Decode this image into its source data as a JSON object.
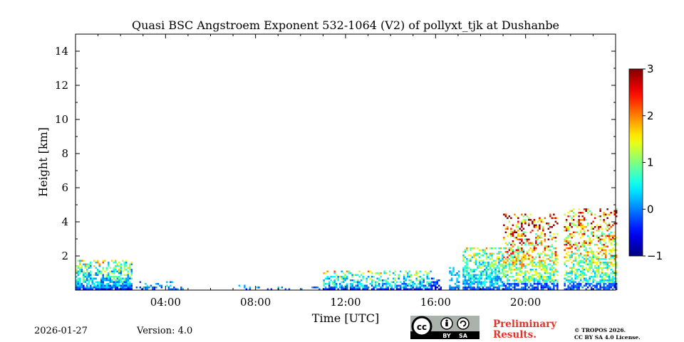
{
  "chart_data": {
    "type": "heatmap",
    "title": "Quasi BSC Angstroem Exponent 532-1064 (V2) of pollyxt_tjk at Dushanbe",
    "xlabel": "Time [UTC]",
    "ylabel": "Height [km]",
    "x_unit": "hours UTC",
    "xlim": [
      0,
      24
    ],
    "ylim": [
      0,
      15
    ],
    "x_ticks": [
      {
        "value": 4,
        "label": "04:00"
      },
      {
        "value": 8,
        "label": "08:00"
      },
      {
        "value": 12,
        "label": "12:00"
      },
      {
        "value": 16,
        "label": "16:00"
      },
      {
        "value": 20,
        "label": "20:00"
      }
    ],
    "y_ticks": [
      {
        "value": 2,
        "label": "2"
      },
      {
        "value": 4,
        "label": "4"
      },
      {
        "value": 6,
        "label": "6"
      },
      {
        "value": 8,
        "label": "8"
      },
      {
        "value": 10,
        "label": "10"
      },
      {
        "value": 12,
        "label": "12"
      },
      {
        "value": 14,
        "label": "14"
      }
    ],
    "colorbar": {
      "range": [
        -1,
        3
      ],
      "colormap": "jet",
      "ticks": [
        {
          "value": -1,
          "label": "−1"
        },
        {
          "value": 0,
          "label": "0"
        },
        {
          "value": 1,
          "label": "1"
        },
        {
          "value": 2,
          "label": "2"
        },
        {
          "value": 3,
          "label": "3"
        }
      ]
    },
    "field_regions": [
      {
        "t0": 0.0,
        "t1": 2.5,
        "top": 1.8,
        "vmin": -0.8,
        "vmax": 1.3,
        "density": 0.95
      },
      {
        "t0": 2.6,
        "t1": 4.8,
        "top": 0.6,
        "vmin": -0.8,
        "vmax": 0.6,
        "density": 0.5
      },
      {
        "t0": 7.0,
        "t1": 11.0,
        "top": 0.4,
        "vmin": -0.8,
        "vmax": 0.4,
        "density": 0.25
      },
      {
        "t0": 11.0,
        "t1": 15.8,
        "top": 1.2,
        "vmin": -0.8,
        "vmax": 1.3,
        "density": 0.8
      },
      {
        "t0": 15.8,
        "t1": 16.2,
        "top": 0.8,
        "vmin": -1.0,
        "vmax": 0.0,
        "density": 0.8
      },
      {
        "t0": 16.6,
        "t1": 17.0,
        "top": 1.5,
        "vmin": -0.5,
        "vmax": 0.5,
        "density": 0.8
      },
      {
        "t0": 17.2,
        "t1": 19.0,
        "top": 2.6,
        "vmin": -0.5,
        "vmax": 1.3,
        "density": 0.85
      },
      {
        "t0": 19.0,
        "t1": 21.4,
        "top": 4.5,
        "vmin": -0.5,
        "vmax": 2.6,
        "density": 0.7
      },
      {
        "t0": 21.7,
        "t1": 24.0,
        "top": 4.8,
        "vmin": -0.5,
        "vmax": 2.4,
        "density": 0.7
      }
    ],
    "gaps": [
      [
        2.5,
        2.6
      ],
      [
        16.2,
        16.6
      ],
      [
        17.0,
        17.2
      ],
      [
        21.4,
        21.7
      ]
    ]
  },
  "footer": {
    "date": "2026-01-27",
    "version": "Version: 4.0",
    "badge": {
      "cc": "cc",
      "by": "BY",
      "sa": "SA"
    },
    "preliminary": [
      "Preliminary",
      "Results."
    ],
    "copyright": [
      "© TROPOS 2026.",
      "CC BY SA 4.0 License."
    ]
  }
}
